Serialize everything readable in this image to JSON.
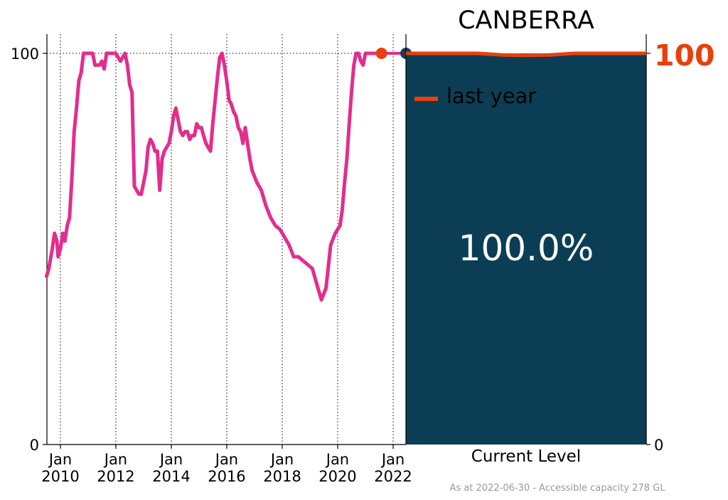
{
  "title": "CANBERRA",
  "colors": {
    "history_line": "#e32d8d",
    "last_year": "#e8400c",
    "panel_fill": "#0b3e55",
    "current_marker": "#1d3d55",
    "grid": "#000000",
    "footer": "#999999"
  },
  "chart_data": [
    {
      "type": "line",
      "title": "",
      "xlabel": "",
      "ylabel": "",
      "ylim": [
        0,
        100
      ],
      "xlim": [
        "2009-06-15",
        "2022-07-01"
      ],
      "x_tick_labels": [
        {
          "date": "2010-01-01",
          "line1": "Jan",
          "line2": "2010"
        },
        {
          "date": "2012-01-01",
          "line1": "Jan",
          "line2": "2012"
        },
        {
          "date": "2014-01-01",
          "line1": "Jan",
          "line2": "2014"
        },
        {
          "date": "2016-01-01",
          "line1": "Jan",
          "line2": "2016"
        },
        {
          "date": "2018-01-01",
          "line1": "Jan",
          "line2": "2018"
        },
        {
          "date": "2020-01-01",
          "line1": "Jan",
          "line2": "2020"
        },
        {
          "date": "2022-01-01",
          "line1": "Jan",
          "line2": "2022"
        }
      ],
      "y_tick_labels": [
        "0",
        "100"
      ],
      "gridlines": "dotted vertical at each Jan tick, dotted horizontal at 100",
      "series": [
        {
          "x": [
            "2009-07-01",
            "2009-08-01",
            "2009-09-15",
            "2009-10-15",
            "2009-11-15",
            "2009-12-01",
            "2010-01-01",
            "2010-02-01",
            "2010-03-01",
            "2010-04-01",
            "2010-05-01",
            "2010-06-01",
            "2010-07-01",
            "2010-08-01",
            "2010-09-01",
            "2010-10-01",
            "2010-11-01",
            "2010-12-01",
            "2011-01-01",
            "2011-02-01",
            "2011-03-01",
            "2011-04-01",
            "2011-06-01",
            "2011-07-01",
            "2011-08-01",
            "2011-09-01",
            "2011-10-01",
            "2011-11-01",
            "2012-01-01",
            "2012-03-01",
            "2012-05-01",
            "2012-06-01",
            "2012-07-01",
            "2012-08-01",
            "2012-09-01",
            "2012-10-01",
            "2012-11-01",
            "2012-12-01",
            "2013-01-01",
            "2013-02-01",
            "2013-03-01",
            "2013-04-01",
            "2013-05-01",
            "2013-06-01",
            "2013-07-01",
            "2013-08-01",
            "2013-09-01",
            "2013-10-01",
            "2013-11-01",
            "2013-12-01",
            "2014-01-01",
            "2014-02-01",
            "2014-03-01",
            "2014-04-01",
            "2014-05-01",
            "2014-06-01",
            "2014-07-01",
            "2014-08-01",
            "2014-09-01",
            "2014-10-01",
            "2014-11-01",
            "2014-12-01",
            "2015-01-01",
            "2015-02-01",
            "2015-03-01",
            "2015-04-01",
            "2015-05-01",
            "2015-06-01",
            "2015-07-01",
            "2015-08-01",
            "2015-09-01",
            "2015-10-01",
            "2015-11-01",
            "2015-12-01",
            "2016-01-01",
            "2016-02-01",
            "2016-03-01",
            "2016-04-01",
            "2016-05-01",
            "2016-06-01",
            "2016-07-01",
            "2016-08-01",
            "2016-09-01",
            "2016-10-01",
            "2016-11-01",
            "2016-12-01",
            "2017-02-01",
            "2017-04-01",
            "2017-06-01",
            "2017-08-01",
            "2017-10-01",
            "2017-12-01",
            "2018-02-01",
            "2018-04-01",
            "2018-06-01",
            "2018-08-01",
            "2018-10-01",
            "2018-12-01",
            "2019-02-01",
            "2019-04-01",
            "2019-06-01",
            "2019-08-01",
            "2019-10-01",
            "2019-12-01",
            "2020-01-01",
            "2020-02-01",
            "2020-03-01",
            "2020-04-01",
            "2020-05-01",
            "2020-06-01",
            "2020-07-01",
            "2020-08-01",
            "2020-09-01",
            "2020-10-01",
            "2020-11-01",
            "2020-12-01",
            "2021-01-01",
            "2021-02-01",
            "2021-03-01",
            "2021-04-01",
            "2021-05-01",
            "2021-06-01"
          ],
          "y": [
            43,
            45,
            50,
            54,
            52,
            48,
            50,
            54,
            52,
            56,
            58,
            68,
            80,
            86,
            93,
            95,
            100,
            100,
            100,
            100,
            100,
            97,
            97,
            98,
            96,
            100,
            100,
            100,
            100,
            98,
            100,
            97,
            92,
            90,
            66,
            65,
            64,
            64,
            67,
            70,
            76,
            78,
            77,
            75,
            75,
            65,
            73,
            75,
            76,
            77,
            80,
            84,
            86,
            83,
            80,
            79,
            80,
            80,
            78,
            79,
            79,
            82,
            81,
            81,
            79,
            77,
            76,
            75,
            82,
            88,
            94,
            99,
            100,
            97,
            93,
            88,
            87,
            85,
            84,
            81,
            80,
            77,
            81,
            77,
            73,
            70,
            67,
            65,
            61,
            58,
            56,
            55,
            53,
            51,
            48,
            48,
            47,
            46,
            45,
            41,
            37,
            40,
            51,
            54,
            55,
            56,
            60,
            67,
            73,
            82,
            90,
            97,
            100,
            100,
            98,
            97,
            100,
            100,
            100,
            100,
            100,
            100
          ],
          "color": "#e32d8d"
        }
      ],
      "markers": [
        {
          "x": "2021-08-01",
          "y": 100,
          "color": "#e8400c"
        },
        {
          "x": "2022-06-30",
          "y": 100,
          "color": "#1d3d55"
        }
      ]
    },
    {
      "type": "bar",
      "title": "CANBERRA",
      "xlabel": "Current Level",
      "ylabel": "",
      "ylim": [
        0,
        100
      ],
      "categories": [
        "Current Level"
      ],
      "values": [
        100.0
      ],
      "value_label": "100.0%",
      "right_tick_labels": {
        "top": "100",
        "bottom": "0"
      },
      "legend": {
        "position": "top-left",
        "label": "last year"
      },
      "last_year": {
        "x": [
          0,
          0.1,
          0.2,
          0.3,
          0.4,
          0.5,
          0.6,
          0.7,
          0.8,
          0.9,
          1.0
        ],
        "y": [
          100,
          100,
          100,
          100,
          99.6,
          99.5,
          99.6,
          100,
          100,
          100,
          100
        ]
      }
    }
  ],
  "footer": "As at 2022-06-30 - Accessible capacity 278 GL"
}
